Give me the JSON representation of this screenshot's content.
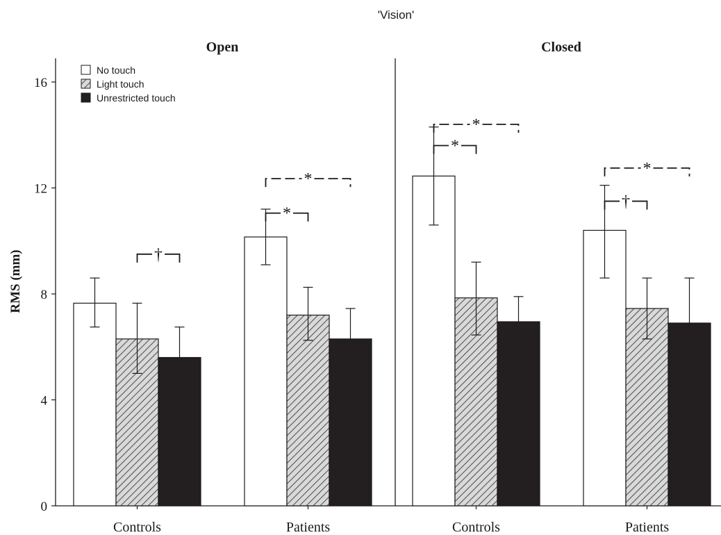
{
  "figure": {
    "title": "'Vision'",
    "ylabel": "RMS (mm)"
  },
  "legend": {
    "placement": "top-left",
    "items": [
      {
        "label": "No touch",
        "fill": "white"
      },
      {
        "label": "Light touch",
        "fill": "hatched"
      },
      {
        "label": "Unrestricted touch",
        "fill": "black"
      }
    ]
  },
  "colors": {
    "bar_white": "#ffffff",
    "bar_hatch_bg": "#d9d9d9",
    "bar_hatch_line": "#555555",
    "bar_black": "#231f20",
    "ink": "#1a1a1a"
  },
  "chart_data": [
    {
      "type": "bar",
      "title": "Open",
      "categories": [
        "Controls",
        "Patients"
      ],
      "ylim": [
        0,
        16
      ],
      "yticks": [
        0,
        4,
        8,
        12,
        16
      ],
      "series": [
        {
          "name": "No touch",
          "values": [
            7.65,
            10.15
          ],
          "err_low": [
            6.75,
            9.1
          ],
          "err_high": [
            8.6,
            11.2
          ]
        },
        {
          "name": "Light touch",
          "values": [
            6.3,
            7.2
          ],
          "err_low": [
            5.0,
            6.25
          ],
          "err_high": [
            7.65,
            8.25
          ]
        },
        {
          "name": "Unrestricted touch",
          "values": [
            5.6,
            6.3
          ],
          "err_low": [
            null,
            null
          ],
          "err_high": [
            6.75,
            7.45
          ]
        }
      ],
      "annotations": [
        {
          "category": 0,
          "from": 1,
          "to": 2,
          "symbol": "†",
          "y": 9.5
        },
        {
          "category": 1,
          "from": 0,
          "to": 2,
          "symbol": "*",
          "y": 12.35
        },
        {
          "category": 1,
          "from": 0,
          "to": 1,
          "symbol": "*",
          "y": 11.05
        }
      ]
    },
    {
      "type": "bar",
      "title": "Closed",
      "categories": [
        "Controls",
        "Patients"
      ],
      "ylim": [
        0,
        16
      ],
      "yticks": [
        0,
        4,
        8,
        12,
        16
      ],
      "series": [
        {
          "name": "No touch",
          "values": [
            12.45,
            10.4
          ],
          "err_low": [
            10.6,
            8.6
          ],
          "err_high": [
            14.3,
            12.1
          ]
        },
        {
          "name": "Light touch",
          "values": [
            7.85,
            7.45
          ],
          "err_low": [
            6.45,
            6.3
          ],
          "err_high": [
            9.2,
            8.6
          ]
        },
        {
          "name": "Unrestricted touch",
          "values": [
            6.95,
            6.9
          ],
          "err_low": [
            null,
            null
          ],
          "err_high": [
            7.9,
            8.6
          ]
        }
      ],
      "annotations": [
        {
          "category": 0,
          "from": 0,
          "to": 2,
          "symbol": "*",
          "y": 14.4
        },
        {
          "category": 0,
          "from": 0,
          "to": 1,
          "symbol": "*",
          "y": 13.6
        },
        {
          "category": 1,
          "from": 0,
          "to": 2,
          "symbol": "*",
          "y": 12.75
        },
        {
          "category": 1,
          "from": 0,
          "to": 1,
          "symbol": "†",
          "y": 11.5
        }
      ]
    }
  ]
}
